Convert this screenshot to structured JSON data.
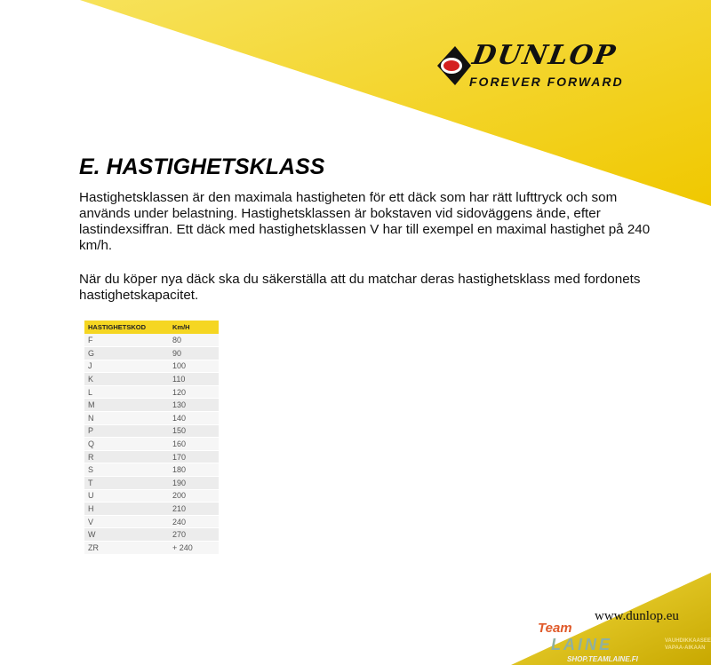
{
  "header": {
    "brand": "DUNLOP",
    "tagline": "FOREVER FORWARD",
    "colors": {
      "yellow": "#f5d21c",
      "dark": "#111111"
    }
  },
  "title": "E. HASTIGHETSKLASS",
  "paragraphs": [
    "Hastighetsklassen är den maximala hastigheten för ett däck som har rätt lufttryck och som används under belastning. Hastighetsklassen är bokstaven vid sidoväggens ände, efter lastindexsiffran. Ett däck med hastighetsklassen V har till exempel en maximal hastighet på 240 km/h.",
    "När du köper nya däck ska du säkerställa att du matchar deras hastighetsklass med fordonets hastighetskapacitet."
  ],
  "table": {
    "headers": [
      "HASTIGHETSKOD",
      "Km/H"
    ],
    "rows": [
      [
        "F",
        "80"
      ],
      [
        "G",
        "90"
      ],
      [
        "J",
        "100"
      ],
      [
        "K",
        "110"
      ],
      [
        "L",
        "120"
      ],
      [
        "M",
        "130"
      ],
      [
        "N",
        "140"
      ],
      [
        "P",
        "150"
      ],
      [
        "Q",
        "160"
      ],
      [
        "R",
        "170"
      ],
      [
        "S",
        "180"
      ],
      [
        "T",
        "190"
      ],
      [
        "U",
        "200"
      ],
      [
        "H",
        "210"
      ],
      [
        "V",
        "240"
      ],
      [
        "W",
        "270"
      ],
      [
        "ZR",
        "+ 240"
      ]
    ]
  },
  "footer": {
    "url": "www.dunlop.eu",
    "watermark": {
      "team": "Team",
      "name": "LAINE",
      "shop": "SHOP.TEAMLAINE.FI",
      "side": [
        "VAUHDIKKAASEEN",
        "VAPAA-AIKAAN"
      ]
    }
  }
}
